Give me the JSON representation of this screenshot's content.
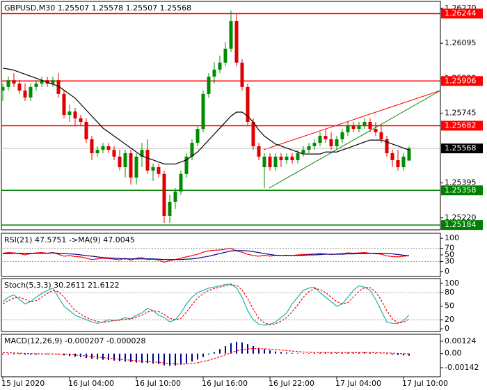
{
  "chart_data": [
    {
      "type": "candlestick",
      "title": "GBPUSD,M30  1.25507 1.25578 1.25507 1.25568",
      "categories": [
        "15 Jul 2020",
        null,
        null,
        null,
        null,
        null,
        null,
        null,
        null,
        null,
        null,
        null,
        "16 Jul 04:00",
        null,
        null,
        null,
        null,
        null,
        null,
        null,
        null,
        null,
        null,
        null,
        "16 Jul 10:00",
        null,
        null,
        null,
        null,
        null,
        null,
        null,
        null,
        null,
        null,
        null,
        "16 Jul 16:00",
        null,
        null,
        null,
        null,
        null,
        null,
        null,
        null,
        null,
        null,
        null,
        "16 Jul 22:00",
        null,
        null,
        null,
        null,
        null,
        null,
        null,
        null,
        null,
        null,
        null,
        "17 Jul 04:00",
        null,
        null,
        null,
        null,
        null,
        null,
        null,
        null,
        null,
        null,
        null,
        "17 Jul 10:00",
        null
      ],
      "open": [
        1.25858,
        1.25876,
        1.2591,
        1.25893,
        1.25858,
        1.25823,
        1.25876,
        1.25893,
        1.2591,
        1.25893,
        1.2591,
        1.25841,
        1.25736,
        1.25753,
        1.25719,
        1.25701,
        1.25614,
        1.25544,
        1.25561,
        1.25579,
        1.25561,
        1.25527,
        1.25474,
        1.25544,
        1.25422,
        1.25527,
        1.25561,
        1.25457,
        1.25474,
        1.2544,
        1.2523,
        1.253,
        1.25352,
        1.2544,
        1.25527,
        1.25596,
        1.25666,
        1.25841,
        1.25928,
        1.25963,
        1.25998,
        1.26068,
        1.26207,
        1.25998,
        1.25876,
        1.25701,
        1.25579,
        1.25474,
        1.25527,
        1.25474,
        1.25527,
        1.25509,
        1.25527,
        1.25509,
        1.25544,
        1.25561,
        1.25579,
        1.25596,
        1.25631,
        1.25614,
        1.25579,
        1.25614,
        1.25649,
        1.25684,
        1.25666,
        1.25684,
        1.25701,
        1.25666,
        1.25649,
        1.25614,
        1.25544,
        1.25509,
        1.25474,
        1.25507
      ],
      "high": [
        1.25893,
        1.25928,
        1.25945,
        1.2591,
        1.25893,
        1.25893,
        1.2591,
        1.25928,
        1.25928,
        1.25928,
        1.25945,
        1.25858,
        1.25788,
        1.25771,
        1.25736,
        1.25719,
        1.25631,
        1.25579,
        1.25596,
        1.25596,
        1.25579,
        1.25561,
        1.25561,
        1.25561,
        1.25544,
        1.25596,
        1.25614,
        1.25492,
        1.25492,
        1.25457,
        1.25335,
        1.2537,
        1.25457,
        1.25544,
        1.25614,
        1.25684,
        1.25858,
        1.25945,
        1.26,
        1.26033,
        1.26102,
        1.2626,
        1.26242,
        1.26015,
        1.25893,
        1.25719,
        1.25596,
        1.25544,
        1.25544,
        1.25544,
        1.25544,
        1.25544,
        1.25544,
        1.25561,
        1.25579,
        1.25596,
        1.25614,
        1.25649,
        1.25666,
        1.25649,
        1.25631,
        1.25666,
        1.25701,
        1.25701,
        1.25701,
        1.25719,
        1.25719,
        1.25701,
        1.25684,
        1.25631,
        1.25561,
        1.25561,
        1.25544,
        1.25578
      ],
      "low": [
        1.25806,
        1.25858,
        1.25876,
        1.25841,
        1.25806,
        1.25806,
        1.25858,
        1.25876,
        1.25876,
        1.25876,
        1.25823,
        1.25719,
        1.25701,
        1.25684,
        1.25684,
        1.25596,
        1.25509,
        1.25527,
        1.25544,
        1.25544,
        1.25509,
        1.25457,
        1.25422,
        1.25387,
        1.25387,
        1.25474,
        1.2544,
        1.25405,
        1.25422,
        1.25195,
        1.25195,
        1.25265,
        1.25335,
        1.25422,
        1.25509,
        1.25579,
        1.25649,
        1.25823,
        1.25893,
        1.25945,
        1.2598,
        1.2605,
        1.2598,
        1.25858,
        1.25684,
        1.25561,
        1.25509,
        1.2537,
        1.25457,
        1.25457,
        1.25474,
        1.25492,
        1.25492,
        1.25492,
        1.25527,
        1.25544,
        1.25561,
        1.25579,
        1.25596,
        1.25561,
        1.25561,
        1.25596,
        1.25631,
        1.25649,
        1.25649,
        1.25666,
        1.25649,
        1.25631,
        1.25596,
        1.25527,
        1.25474,
        1.25457,
        1.25457,
        1.25507
      ],
      "close": [
        1.25876,
        1.2591,
        1.25893,
        1.25858,
        1.25823,
        1.25876,
        1.25893,
        1.2591,
        1.25893,
        1.2591,
        1.25841,
        1.25736,
        1.25753,
        1.25719,
        1.25701,
        1.25614,
        1.25544,
        1.25561,
        1.25579,
        1.25561,
        1.25527,
        1.25474,
        1.25544,
        1.25422,
        1.25527,
        1.25561,
        1.25457,
        1.25474,
        1.2544,
        1.2523,
        1.253,
        1.25352,
        1.2544,
        1.25527,
        1.25596,
        1.25666,
        1.25841,
        1.25928,
        1.25963,
        1.25998,
        1.26068,
        1.26207,
        1.25998,
        1.25876,
        1.25701,
        1.25579,
        1.25527,
        1.25527,
        1.25474,
        1.25527,
        1.25509,
        1.25527,
        1.25509,
        1.25544,
        1.25561,
        1.25579,
        1.25596,
        1.25631,
        1.25614,
        1.25579,
        1.25614,
        1.25649,
        1.25684,
        1.25666,
        1.25684,
        1.25701,
        1.25666,
        1.25649,
        1.25614,
        1.25544,
        1.25509,
        1.25474,
        1.25527,
        1.25568
      ],
      "up_color": "#008c00",
      "down_color": "#e00000",
      "ma": {
        "color": "#000000",
        "values": [
          1.2597,
          1.25966,
          1.2596,
          1.2595,
          1.2594,
          1.2593,
          1.2592,
          1.2591,
          1.259,
          1.2589,
          1.2588,
          1.2586,
          1.2584,
          1.2582,
          1.2579,
          1.2576,
          1.2573,
          1.257,
          1.2567,
          1.2565,
          1.2563,
          1.2561,
          1.2559,
          1.2557,
          1.2555,
          1.2553,
          1.2552,
          1.2551,
          1.255,
          1.2549,
          1.2549,
          1.2549,
          1.255,
          1.2551,
          1.2553,
          1.2555,
          1.2558,
          1.2561,
          1.2564,
          1.2567,
          1.257,
          1.2573,
          1.2575,
          1.2575,
          1.2573,
          1.257,
          1.2566,
          1.2563,
          1.2561,
          1.2559,
          1.2558,
          1.2557,
          1.2556,
          1.2555,
          1.2554,
          1.2554,
          1.2554,
          1.2554,
          1.2555,
          1.2555,
          1.2555,
          1.2556,
          1.2557,
          1.2558,
          1.2559,
          1.256,
          1.2561,
          1.2561,
          1.2561,
          1.256,
          1.2559,
          1.2558,
          1.2557,
          1.2556
        ]
      },
      "levels": [
        {
          "value": 1.26244,
          "color": "#ff0000"
        },
        {
          "value": 1.25906,
          "color": "#ff0000"
        },
        {
          "value": 1.25682,
          "color": "#ff0000"
        },
        {
          "value": 1.25358,
          "color": "#008000"
        },
        {
          "value": 1.25184,
          "color": "#008000"
        }
      ],
      "current_price": 1.25568,
      "ylim": [
        1.2516,
        1.26305
      ],
      "yticks": [
        {
          "value": 1.2522,
          "label": "1.25220"
        },
        1.25395,
        1.25745,
        {
          "value": 1.2592,
          "label": "1.25920"
        },
        1.26095,
        {
          "value": 1.2627,
          "label": "1.26270"
        }
      ]
    },
    {
      "type": "line",
      "title": "RSI(21) 47.5751 ->MA(9) 47.0045",
      "series": [
        {
          "color": "#ff0000",
          "values": [
            55,
            57,
            56,
            54,
            50,
            54,
            56,
            57,
            55,
            57,
            52,
            46,
            48,
            45,
            44,
            40,
            36,
            38,
            40,
            39,
            37,
            35,
            40,
            34,
            40,
            42,
            36,
            37,
            35,
            28,
            33,
            36,
            40,
            44,
            48,
            52,
            58,
            62,
            64,
            65,
            67,
            70,
            62,
            58,
            52,
            48,
            46,
            49,
            46,
            49,
            48,
            49,
            48,
            50,
            51,
            52,
            53,
            54,
            53,
            51,
            53,
            54,
            56,
            55,
            56,
            57,
            55,
            54,
            52,
            47,
            45,
            44,
            46,
            47.5751
          ]
        },
        {
          "color": "#00008b",
          "values": [
            54,
            54,
            55,
            55,
            55,
            55,
            55,
            55,
            55,
            56,
            55,
            54,
            53,
            52,
            50,
            48,
            46,
            44,
            42,
            41,
            40,
            39,
            38,
            38,
            38,
            38,
            38,
            38,
            37,
            36,
            36,
            36,
            36,
            37,
            38,
            40,
            43,
            46,
            50,
            54,
            58,
            62,
            63,
            63,
            62,
            60,
            57,
            54,
            51,
            49,
            48,
            48,
            48,
            48,
            49,
            50,
            50,
            51,
            52,
            52,
            52,
            52,
            53,
            53,
            54,
            54,
            55,
            55,
            55,
            54,
            53,
            51,
            49,
            47.0045
          ]
        }
      ],
      "levels": [
        30,
        70
      ],
      "ylim": [
        -15,
        115
      ],
      "yticks": [
        0,
        30,
        50,
        70,
        100
      ]
    },
    {
      "type": "line",
      "title": "Stoch(5,3,3) 30.2611 21.6122",
      "series": [
        {
          "color": "#20b2aa",
          "values": [
            60,
            70,
            75,
            65,
            55,
            60,
            70,
            78,
            85,
            90,
            70,
            50,
            40,
            30,
            25,
            20,
            15,
            12,
            15,
            20,
            18,
            20,
            25,
            22,
            30,
            35,
            45,
            40,
            30,
            25,
            15,
            20,
            35,
            55,
            70,
            80,
            85,
            90,
            92,
            95,
            98,
            99,
            90,
            70,
            40,
            20,
            10,
            8,
            10,
            15,
            25,
            35,
            55,
            70,
            85,
            90,
            92,
            80,
            70,
            60,
            50,
            55,
            70,
            85,
            95,
            92,
            85,
            65,
            40,
            15,
            12,
            12,
            18,
            30.2611
          ]
        },
        {
          "color": "#ff0000",
          "dashed": true,
          "values": [
            55,
            62,
            68,
            70,
            65,
            60,
            62,
            70,
            78,
            85,
            82,
            70,
            55,
            40,
            32,
            25,
            20,
            16,
            14,
            16,
            18,
            19,
            21,
            22,
            26,
            30,
            37,
            40,
            38,
            32,
            23,
            20,
            23,
            37,
            53,
            68,
            78,
            85,
            89,
            92,
            95,
            97,
            96,
            86,
            67,
            43,
            23,
            13,
            9,
            11,
            17,
            25,
            38,
            53,
            70,
            82,
            89,
            87,
            80,
            70,
            60,
            55,
            58,
            70,
            83,
            91,
            91,
            81,
            63,
            40,
            22,
            13,
            14,
            21.6122
          ]
        }
      ],
      "levels": [
        20,
        80
      ],
      "ylim": [
        -6,
        111
      ],
      "yticks": [
        0,
        20,
        50,
        80,
        100
      ]
    },
    {
      "type": "macd",
      "title": "MACD(12,26,9) -0.000207 -0.000028",
      "histogram": {
        "color": "#00008b",
        "values": [
          -0.0001,
          -8e-05,
          -6e-05,
          -8e-05,
          -0.0001,
          -0.00012,
          -0.0001,
          -8e-05,
          -6e-05,
          -6e-05,
          -0.0001,
          -0.00018,
          -0.00024,
          -0.0003,
          -0.00036,
          -0.00044,
          -0.00052,
          -0.00058,
          -0.00062,
          -0.00066,
          -0.0007,
          -0.00076,
          -0.0008,
          -0.00086,
          -0.0009,
          -0.00092,
          -0.00096,
          -0.001,
          -0.00104,
          -0.00118,
          -0.00122,
          -0.0012,
          -0.00112,
          -0.00098,
          -0.0008,
          -0.0006,
          -0.00035,
          -0.0001,
          0.00015,
          0.00045,
          0.00075,
          0.00105,
          0.00118,
          0.00112,
          0.00095,
          0.00075,
          0.00058,
          0.00045,
          0.00032,
          0.00022,
          0.00015,
          0.0001,
          6e-05,
          4e-05,
          3e-05,
          4e-05,
          6e-05,
          8e-05,
          0.0001,
          0.0001,
          8e-05,
          8e-05,
          9e-05,
          0.0001,
          0.00011,
          0.00011,
          0.0001,
          6e-05,
          2e-05,
          -4e-05,
          -0.0001,
          -0.00014,
          -0.00018,
          -0.000207
        ]
      },
      "signal": {
        "color": "#ff0000",
        "dashed": true,
        "values": [
          0.0001,
          8e-05,
          6e-05,
          4e-05,
          2e-05,
          0,
          -2e-05,
          -3e-05,
          -4e-05,
          -4e-05,
          -5e-05,
          -7e-05,
          -0.0001,
          -0.00014,
          -0.00018,
          -0.00023,
          -0.00029,
          -0.00035,
          -0.00041,
          -0.00047,
          -0.00052,
          -0.00057,
          -0.00062,
          -0.00067,
          -0.00072,
          -0.00076,
          -0.0008,
          -0.00084,
          -0.00088,
          -0.00094,
          -0.001,
          -0.00104,
          -0.00106,
          -0.00104,
          -0.001,
          -0.00092,
          -0.0008,
          -0.00066,
          -0.0005,
          -0.00032,
          -0.00012,
          8e-05,
          0.00028,
          0.0004,
          0.00048,
          0.0005,
          0.0005,
          0.00048,
          0.00044,
          0.0004,
          0.00035,
          0.0003,
          0.00025,
          0.0002,
          0.00016,
          0.00013,
          0.00011,
          0.0001,
          0.0001,
          0.0001,
          0.0001,
          0.0001,
          0.0001,
          0.0001,
          0.0001,
          0.0001,
          0.0001,
          9e-05,
          8e-05,
          6e-05,
          4e-05,
          2e-05,
          -1e-05,
          -2.8e-05
        ]
      },
      "ylim": [
        -0.00233,
        0.00194
      ],
      "yticks": [
        -0.00142,
        {
          "value": 0,
          "label": "0.00"
        },
        0.00124
      ]
    }
  ]
}
